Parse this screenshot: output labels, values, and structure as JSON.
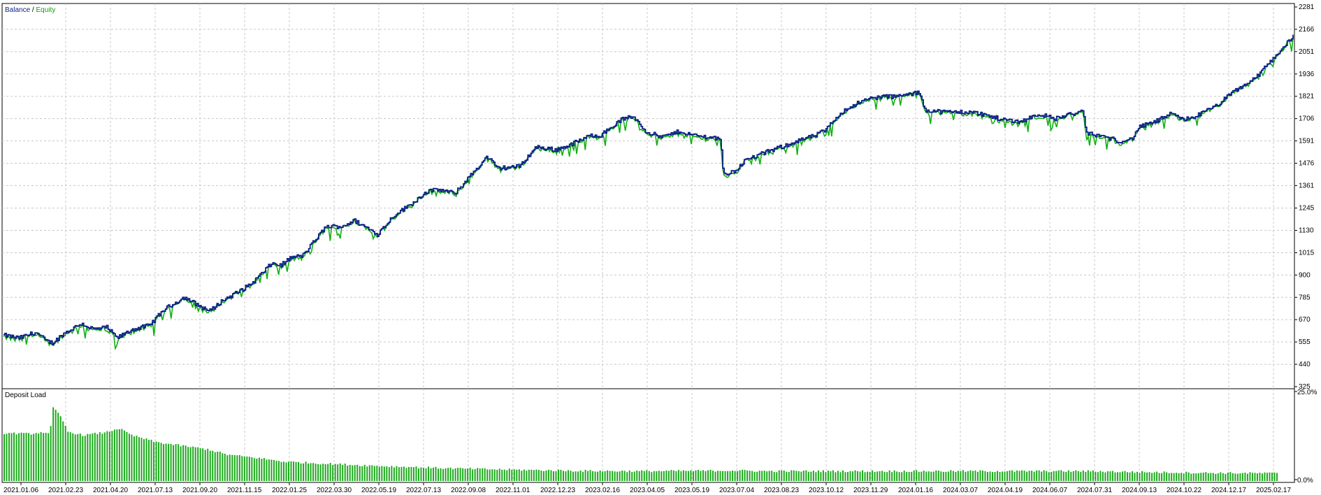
{
  "chart_data": [
    {
      "type": "line",
      "series": [
        {
          "name": "Balance",
          "color": "#0b1f86"
        },
        {
          "name": "Equity",
          "color": "#10b010"
        }
      ],
      "legend_separator": "/",
      "ylim": [
        325,
        2281
      ],
      "y_ticks": [
        "2281",
        "2166",
        "2051",
        "1936",
        "1821",
        "1706",
        "1591",
        "1476",
        "1361",
        "1245",
        "1130",
        "1015",
        "900",
        "785",
        "670",
        "555",
        "440",
        "325"
      ],
      "x_labels": [
        "2021.01.06",
        "2021.02.23",
        "2021.04.20",
        "2021.07.13",
        "2021.09.20",
        "2021.11.15",
        "2022.01.25",
        "2022.03.30",
        "2022.05.19",
        "2022.07.13",
        "2022.09.08",
        "2022.11.01",
        "2022.12.23",
        "2023.02.16",
        "2023.04.05",
        "2023.05.19",
        "2023.07.04",
        "2023.08.23",
        "2023.10.12",
        "2023.11.29",
        "2024.01.16",
        "2024.03.07",
        "2024.04.19",
        "2024.06.07",
        "2024.07.31",
        "2024.09.13",
        "2024.10.22",
        "2024.12.17",
        "2025.02.17"
      ],
      "balance_anchors": [
        [
          0,
          590
        ],
        [
          0.012,
          575
        ],
        [
          0.025,
          605
        ],
        [
          0.033,
          560
        ],
        [
          0.038,
          550
        ],
        [
          0.046,
          595
        ],
        [
          0.06,
          650
        ],
        [
          0.07,
          620
        ],
        [
          0.08,
          630
        ],
        [
          0.088,
          575
        ],
        [
          0.1,
          620
        ],
        [
          0.113,
          640
        ],
        [
          0.124,
          720
        ],
        [
          0.14,
          785
        ],
        [
          0.152,
          740
        ],
        [
          0.16,
          715
        ],
        [
          0.17,
          770
        ],
        [
          0.184,
          820
        ],
        [
          0.193,
          860
        ],
        [
          0.208,
          960
        ],
        [
          0.215,
          950
        ],
        [
          0.223,
          990
        ],
        [
          0.232,
          1000
        ],
        [
          0.25,
          1150
        ],
        [
          0.262,
          1150
        ],
        [
          0.272,
          1180
        ],
        [
          0.28,
          1150
        ],
        [
          0.29,
          1110
        ],
        [
          0.303,
          1210
        ],
        [
          0.315,
          1260
        ],
        [
          0.328,
          1330
        ],
        [
          0.338,
          1340
        ],
        [
          0.35,
          1320
        ],
        [
          0.363,
          1420
        ],
        [
          0.375,
          1510
        ],
        [
          0.383,
          1450
        ],
        [
          0.4,
          1460
        ],
        [
          0.413,
          1560
        ],
        [
          0.428,
          1545
        ],
        [
          0.437,
          1565
        ],
        [
          0.456,
          1620
        ],
        [
          0.463,
          1620
        ],
        [
          0.48,
          1705
        ],
        [
          0.489,
          1715
        ],
        [
          0.498,
          1640
        ],
        [
          0.51,
          1610
        ],
        [
          0.524,
          1640
        ],
        [
          0.535,
          1620
        ],
        [
          0.547,
          1610
        ],
        [
          0.556,
          1605
        ],
        [
          0.558,
          1420
        ],
        [
          0.566,
          1430
        ],
        [
          0.575,
          1490
        ],
        [
          0.59,
          1530
        ],
        [
          0.603,
          1560
        ],
        [
          0.615,
          1590
        ],
        [
          0.63,
          1620
        ],
        [
          0.638,
          1650
        ],
        [
          0.648,
          1730
        ],
        [
          0.66,
          1780
        ],
        [
          0.672,
          1810
        ],
        [
          0.682,
          1820
        ],
        [
          0.693,
          1820
        ],
        [
          0.71,
          1840
        ],
        [
          0.715,
          1750
        ],
        [
          0.73,
          1740
        ],
        [
          0.748,
          1740
        ],
        [
          0.758,
          1730
        ],
        [
          0.772,
          1705
        ],
        [
          0.788,
          1690
        ],
        [
          0.803,
          1730
        ],
        [
          0.815,
          1705
        ],
        [
          0.828,
          1730
        ],
        [
          0.837,
          1740
        ],
        [
          0.84,
          1630
        ],
        [
          0.855,
          1610
        ],
        [
          0.865,
          1590
        ],
        [
          0.875,
          1600
        ],
        [
          0.88,
          1660
        ],
        [
          0.893,
          1690
        ],
        [
          0.905,
          1730
        ],
        [
          0.915,
          1700
        ],
        [
          0.925,
          1720
        ],
        [
          0.94,
          1770
        ],
        [
          0.955,
          1850
        ],
        [
          0.97,
          1910
        ],
        [
          0.985,
          2020
        ],
        [
          1.0,
          2130
        ]
      ]
    },
    {
      "type": "bar",
      "title": "Deposit Load",
      "ylim": [
        0,
        25
      ],
      "y_ticks": [
        "25.0%",
        "0.0%"
      ],
      "color": "#1aaa1a",
      "load_anchors": [
        [
          0,
          13.6
        ],
        [
          0.02,
          13.4
        ],
        [
          0.032,
          13.9
        ],
        [
          0.036,
          13
        ],
        [
          0.038,
          21
        ],
        [
          0.045,
          18
        ],
        [
          0.05,
          14
        ],
        [
          0.062,
          13
        ],
        [
          0.08,
          13.8
        ],
        [
          0.085,
          14.4
        ],
        [
          0.09,
          15
        ],
        [
          0.1,
          13
        ],
        [
          0.12,
          11
        ],
        [
          0.14,
          10
        ],
        [
          0.16,
          9
        ],
        [
          0.175,
          7.5
        ],
        [
          0.2,
          6.5
        ],
        [
          0.22,
          5.5
        ],
        [
          0.26,
          4.8
        ],
        [
          0.3,
          4.2
        ],
        [
          0.35,
          3.6
        ],
        [
          0.4,
          3.2
        ],
        [
          0.45,
          2.9
        ],
        [
          0.5,
          2.8
        ],
        [
          0.55,
          2.9
        ],
        [
          0.57,
          3
        ],
        [
          0.6,
          2.8
        ],
        [
          0.65,
          2.8
        ],
        [
          0.7,
          2.8
        ],
        [
          0.8,
          2.8
        ],
        [
          0.85,
          2.8
        ],
        [
          0.9,
          2.5
        ],
        [
          0.95,
          2.3
        ],
        [
          1.0,
          2.2
        ]
      ]
    }
  ]
}
